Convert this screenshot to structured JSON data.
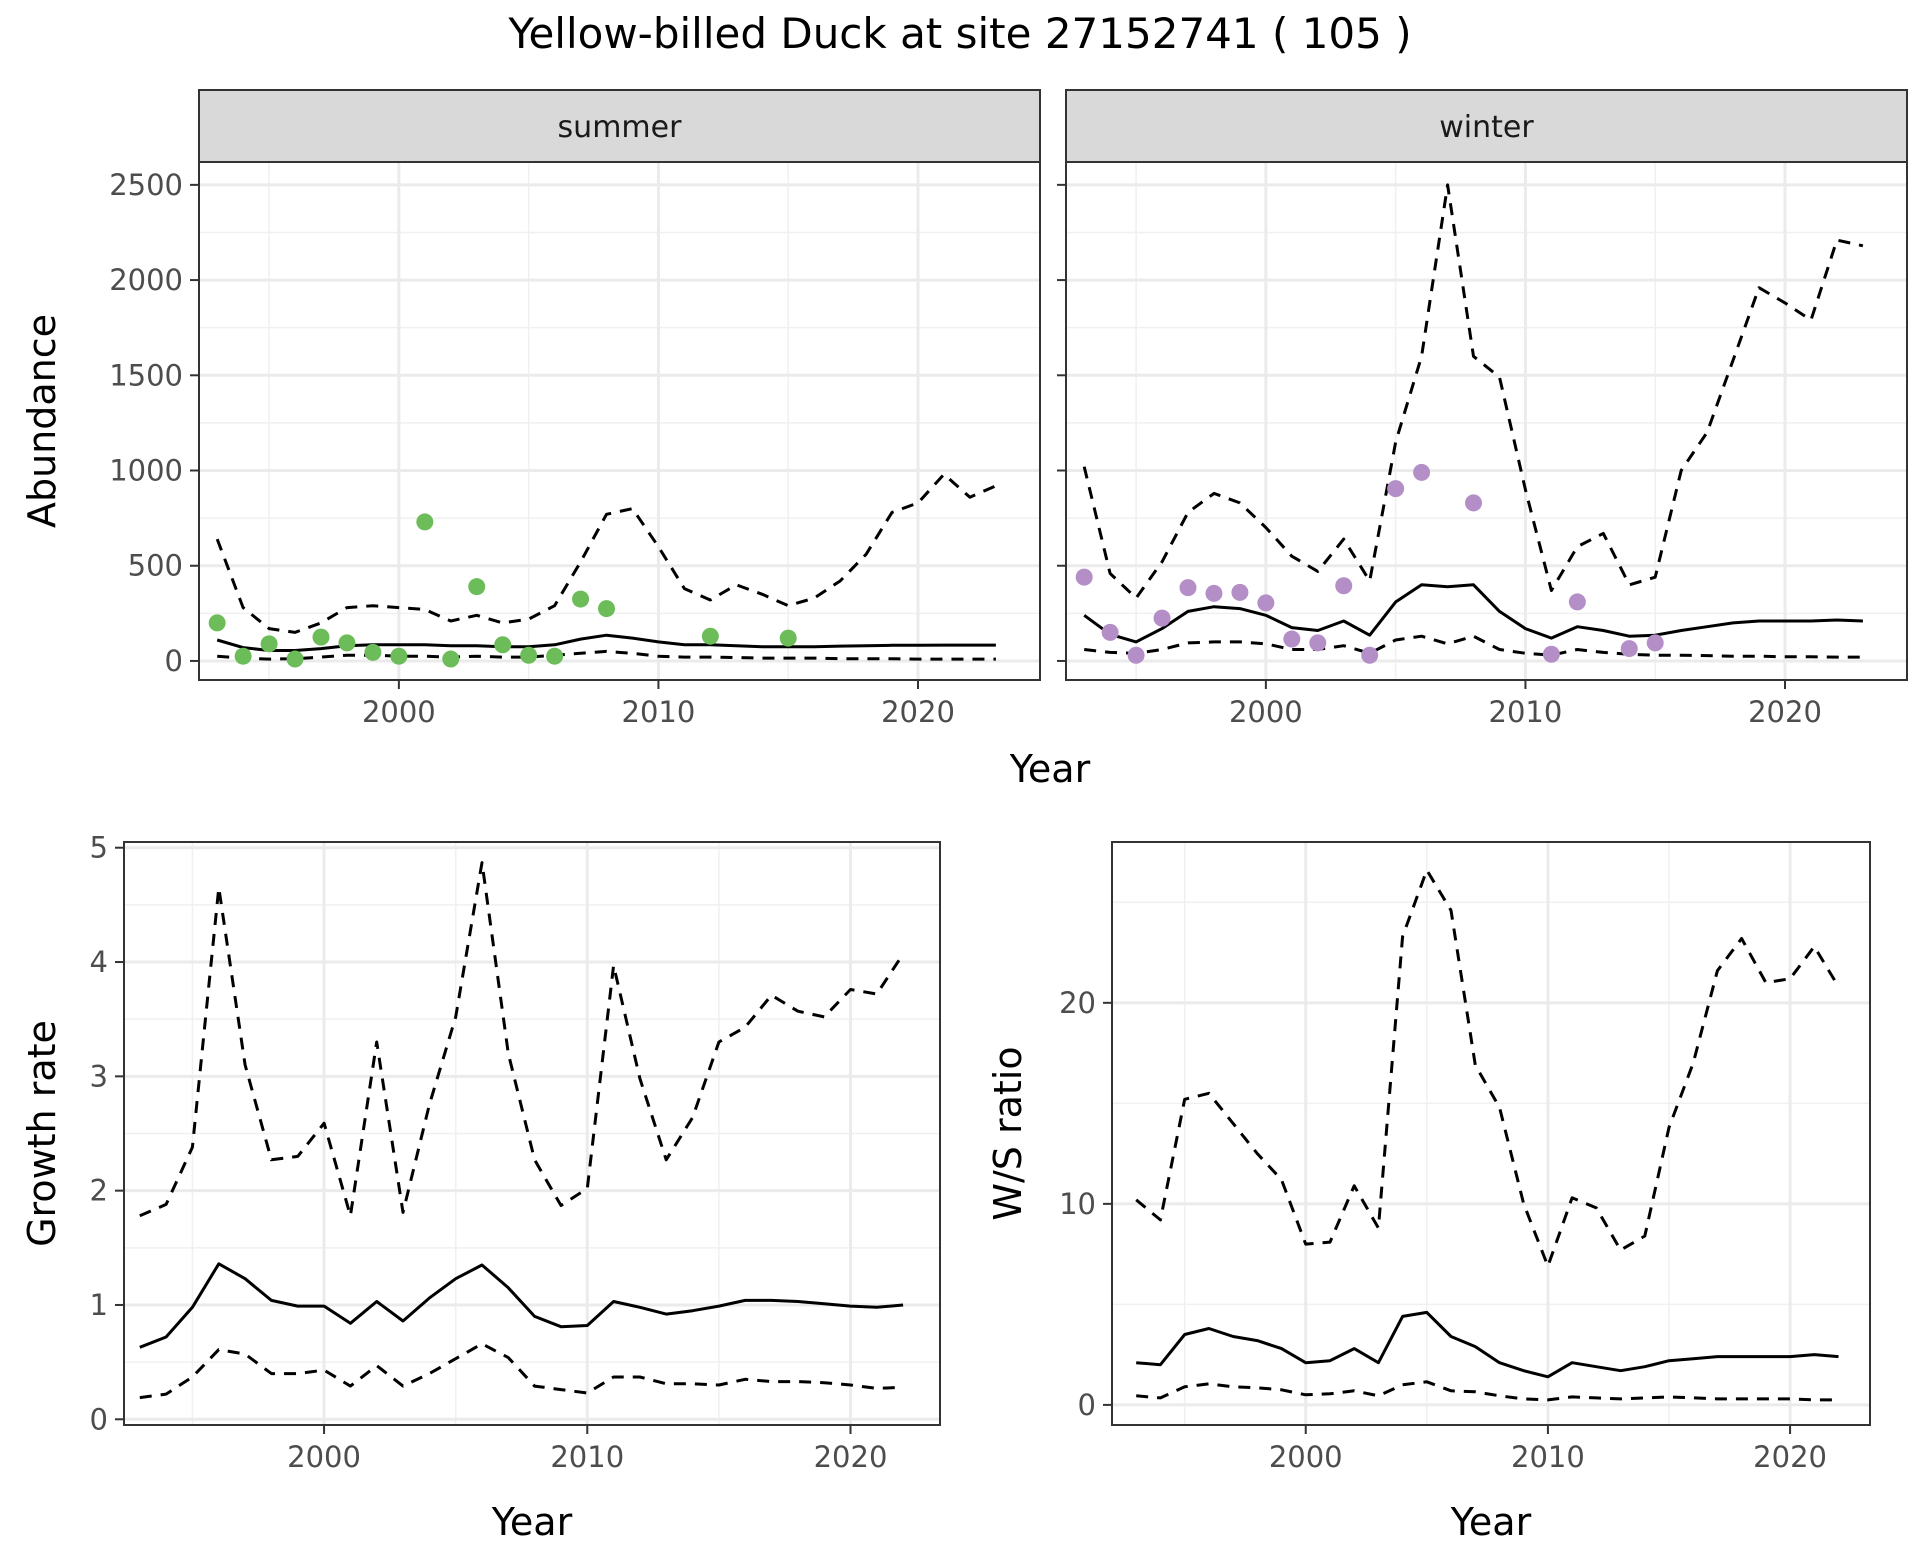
{
  "figure": {
    "title": "Yellow-billed Duck at site 27152741 ( 105 )",
    "top_xlabel": "Year"
  },
  "colors": {
    "summer_points": "#6cbd5a",
    "winter_points": "#b48ec7",
    "strip_fill": "#d9d9d9",
    "line": "#000000"
  },
  "chart_data": [
    {
      "id": "summer",
      "type": "line",
      "panel_label": "summer",
      "xlabel": "",
      "ylabel": "Abundance",
      "xlim": [
        1992.3,
        2024.7
      ],
      "ylim": [
        -100,
        2620
      ],
      "xticks": [
        2000,
        2010,
        2020
      ],
      "yticks": [
        0,
        500,
        1000,
        1500,
        2000,
        2500
      ],
      "show_y_tick_labels": true,
      "grid": true,
      "series": [
        {
          "role": "median",
          "style": "solid",
          "x": [
            1993,
            1994,
            1995,
            1996,
            1997,
            1998,
            1999,
            2000,
            2001,
            2002,
            2003,
            2004,
            2005,
            2006,
            2007,
            2008,
            2009,
            2010,
            2011,
            2012,
            2013,
            2014,
            2015,
            2016,
            2017,
            2018,
            2019,
            2020,
            2021,
            2022,
            2023
          ],
          "y": [
            110,
            70,
            55,
            55,
            65,
            80,
            85,
            85,
            85,
            80,
            80,
            75,
            75,
            85,
            115,
            135,
            120,
            100,
            85,
            85,
            80,
            75,
            75,
            75,
            78,
            80,
            82,
            82,
            83,
            83,
            83
          ]
        },
        {
          "role": "upper",
          "style": "dashed",
          "x": [
            1993,
            1994,
            1995,
            1996,
            1997,
            1998,
            1999,
            2000,
            2001,
            2002,
            2003,
            2004,
            2005,
            2006,
            2007,
            2008,
            2009,
            2010,
            2011,
            2012,
            2013,
            2014,
            2015,
            2016,
            2017,
            2018,
            2019,
            2020,
            2021,
            2022,
            2023
          ],
          "y": [
            640,
            280,
            170,
            150,
            200,
            280,
            290,
            280,
            270,
            210,
            240,
            200,
            220,
            290,
            520,
            770,
            800,
            600,
            380,
            320,
            400,
            350,
            290,
            330,
            420,
            560,
            780,
            830,
            980,
            860,
            920
          ]
        },
        {
          "role": "lower",
          "style": "dashed",
          "x": [
            1993,
            1994,
            1995,
            1996,
            1997,
            1998,
            1999,
            2000,
            2001,
            2002,
            2003,
            2004,
            2005,
            2006,
            2007,
            2008,
            2009,
            2010,
            2011,
            2012,
            2013,
            2014,
            2015,
            2016,
            2017,
            2018,
            2019,
            2020,
            2021,
            2022,
            2023
          ],
          "y": [
            25,
            15,
            10,
            12,
            20,
            30,
            30,
            25,
            25,
            20,
            25,
            20,
            20,
            30,
            40,
            50,
            40,
            25,
            20,
            20,
            18,
            15,
            15,
            15,
            12,
            12,
            12,
            10,
            10,
            10,
            10
          ]
        }
      ],
      "points": {
        "x": [
          1993,
          1994,
          1995,
          1996,
          1997,
          1998,
          1999,
          2000,
          2001,
          2002,
          2003,
          2004,
          2005,
          2006,
          2007,
          2008,
          2012,
          2015
        ],
        "y": [
          200,
          25,
          90,
          10,
          125,
          95,
          45,
          25,
          730,
          10,
          390,
          85,
          30,
          25,
          325,
          275,
          130,
          120
        ]
      }
    },
    {
      "id": "winter",
      "type": "line",
      "panel_label": "winter",
      "xlabel": "",
      "ylabel": "",
      "xlim": [
        1992.3,
        2024.7
      ],
      "ylim": [
        -100,
        2620
      ],
      "xticks": [
        2000,
        2010,
        2020
      ],
      "yticks": [
        0,
        500,
        1000,
        1500,
        2000,
        2500
      ],
      "show_y_tick_labels": false,
      "grid": true,
      "series": [
        {
          "role": "median",
          "style": "solid",
          "x": [
            1993,
            1994,
            1995,
            1996,
            1997,
            1998,
            1999,
            2000,
            2001,
            2002,
            2003,
            2004,
            2005,
            2006,
            2007,
            2008,
            2009,
            2010,
            2011,
            2012,
            2013,
            2014,
            2015,
            2016,
            2017,
            2018,
            2019,
            2020,
            2021,
            2022,
            2023
          ],
          "y": [
            240,
            140,
            100,
            170,
            260,
            285,
            275,
            240,
            175,
            160,
            210,
            135,
            310,
            400,
            390,
            400,
            260,
            170,
            120,
            180,
            160,
            130,
            135,
            160,
            180,
            200,
            210,
            210,
            210,
            215,
            210
          ]
        },
        {
          "role": "upper",
          "style": "dashed",
          "x": [
            1993,
            1994,
            1995,
            1996,
            1997,
            1998,
            1999,
            2000,
            2001,
            2002,
            2003,
            2004,
            2005,
            2006,
            2007,
            2008,
            2009,
            2010,
            2011,
            2012,
            2013,
            2014,
            2015,
            2016,
            2017,
            2018,
            2019,
            2020,
            2021,
            2022,
            2023
          ],
          "y": [
            1020,
            460,
            330,
            520,
            780,
            880,
            830,
            700,
            550,
            470,
            640,
            420,
            1150,
            1600,
            2500,
            1600,
            1490,
            900,
            370,
            600,
            670,
            400,
            440,
            1000,
            1200,
            1580,
            1960,
            1880,
            1790,
            2210,
            2180
          ]
        },
        {
          "role": "lower",
          "style": "dashed",
          "x": [
            1993,
            1994,
            1995,
            1996,
            1997,
            1998,
            1999,
            2000,
            2001,
            2002,
            2003,
            2004,
            2005,
            2006,
            2007,
            2008,
            2009,
            2010,
            2011,
            2012,
            2013,
            2014,
            2015,
            2016,
            2017,
            2018,
            2019,
            2020,
            2021,
            2022,
            2023
          ],
          "y": [
            60,
            45,
            40,
            60,
            95,
            100,
            100,
            90,
            60,
            60,
            80,
            40,
            110,
            130,
            90,
            130,
            60,
            40,
            30,
            60,
            45,
            35,
            30,
            30,
            28,
            25,
            25,
            22,
            22,
            20,
            20
          ]
        }
      ],
      "points": {
        "x": [
          1993,
          1994,
          1995,
          1996,
          1997,
          1998,
          1999,
          2000,
          2001,
          2002,
          2003,
          2004,
          2005,
          2006,
          2008,
          2011,
          2012,
          2014,
          2015
        ],
        "y": [
          440,
          150,
          30,
          225,
          385,
          355,
          360,
          305,
          115,
          95,
          395,
          30,
          905,
          990,
          830,
          35,
          310,
          65,
          95
        ]
      }
    },
    {
      "id": "growth",
      "type": "line",
      "xlabel": "Year",
      "ylabel": "Growth rate",
      "xlim": [
        1992.4,
        2023.4
      ],
      "ylim": [
        -0.05,
        5.05
      ],
      "xticks": [
        2000,
        2010,
        2020
      ],
      "yticks": [
        0,
        1,
        2,
        3,
        4,
        5
      ],
      "show_y_tick_labels": true,
      "grid": true,
      "series": [
        {
          "role": "median",
          "style": "solid",
          "x": [
            1993,
            1994,
            1995,
            1996,
            1997,
            1998,
            1999,
            2000,
            2001,
            2002,
            2003,
            2004,
            2005,
            2006,
            2007,
            2008,
            2009,
            2010,
            2011,
            2012,
            2013,
            2014,
            2015,
            2016,
            2017,
            2018,
            2019,
            2020,
            2021,
            2022
          ],
          "y": [
            0.63,
            0.72,
            0.98,
            1.36,
            1.23,
            1.04,
            0.99,
            0.99,
            0.84,
            1.03,
            0.86,
            1.06,
            1.23,
            1.35,
            1.15,
            0.9,
            0.81,
            0.82,
            1.03,
            0.98,
            0.92,
            0.95,
            0.99,
            1.04,
            1.04,
            1.03,
            1.01,
            0.99,
            0.98,
            1.0
          ]
        },
        {
          "role": "upper",
          "style": "dashed",
          "x": [
            1993,
            1994,
            1995,
            1996,
            1997,
            1998,
            1999,
            2000,
            2001,
            2002,
            2003,
            2004,
            2005,
            2006,
            2007,
            2008,
            2009,
            2010,
            2011,
            2012,
            2013,
            2014,
            2015,
            2016,
            2017,
            2018,
            2019,
            2020,
            2021,
            2022
          ],
          "y": [
            1.78,
            1.88,
            2.38,
            4.65,
            3.1,
            2.27,
            2.3,
            2.59,
            1.78,
            3.3,
            1.81,
            2.75,
            3.52,
            4.87,
            3.2,
            2.27,
            1.87,
            2.02,
            3.97,
            2.98,
            2.27,
            2.64,
            3.3,
            3.43,
            3.71,
            3.57,
            3.52,
            3.76,
            3.72,
            4.07
          ]
        },
        {
          "role": "lower",
          "style": "dashed",
          "x": [
            1993,
            1994,
            1995,
            1996,
            1997,
            1998,
            1999,
            2000,
            2001,
            2002,
            2003,
            2004,
            2005,
            2006,
            2007,
            2008,
            2009,
            2010,
            2011,
            2012,
            2013,
            2014,
            2015,
            2016,
            2017,
            2018,
            2019,
            2020,
            2021,
            2022
          ],
          "y": [
            0.19,
            0.22,
            0.37,
            0.61,
            0.57,
            0.4,
            0.4,
            0.43,
            0.29,
            0.47,
            0.29,
            0.4,
            0.53,
            0.66,
            0.54,
            0.29,
            0.26,
            0.23,
            0.37,
            0.37,
            0.31,
            0.31,
            0.3,
            0.35,
            0.33,
            0.33,
            0.32,
            0.3,
            0.27,
            0.28
          ]
        }
      ]
    },
    {
      "id": "ws",
      "type": "line",
      "xlabel": "Year",
      "ylabel": "W/S ratio",
      "xlim": [
        1992.0,
        2023.3
      ],
      "ylim": [
        -1.0,
        28.0
      ],
      "xticks": [
        2000,
        2010,
        2020
      ],
      "yticks": [
        0,
        10,
        20
      ],
      "show_y_tick_labels": true,
      "grid": true,
      "series": [
        {
          "role": "median",
          "style": "solid",
          "x": [
            1993,
            1994,
            1995,
            1996,
            1997,
            1998,
            1999,
            2000,
            2001,
            2002,
            2003,
            2004,
            2005,
            2006,
            2007,
            2008,
            2009,
            2010,
            2011,
            2012,
            2013,
            2014,
            2015,
            2016,
            2017,
            2018,
            2019,
            2020,
            2021,
            2022
          ],
          "y": [
            2.1,
            2.0,
            3.5,
            3.8,
            3.4,
            3.2,
            2.8,
            2.1,
            2.2,
            2.8,
            2.1,
            4.4,
            4.6,
            3.4,
            2.9,
            2.1,
            1.7,
            1.4,
            2.1,
            1.9,
            1.7,
            1.9,
            2.2,
            2.3,
            2.4,
            2.4,
            2.4,
            2.4,
            2.5,
            2.4
          ]
        },
        {
          "role": "upper",
          "style": "dashed",
          "x": [
            1993,
            1994,
            1995,
            1996,
            1997,
            1998,
            1999,
            2000,
            2001,
            2002,
            2003,
            2004,
            2005,
            2006,
            2007,
            2008,
            2009,
            2010,
            2011,
            2012,
            2013,
            2014,
            2015,
            2016,
            2017,
            2018,
            2019,
            2020,
            2021,
            2022
          ],
          "y": [
            10.2,
            9.2,
            15.2,
            15.5,
            14.0,
            12.5,
            11.2,
            8.0,
            8.1,
            10.9,
            8.8,
            23.3,
            26.6,
            24.6,
            16.9,
            14.8,
            10.0,
            6.9,
            10.3,
            9.8,
            7.7,
            8.4,
            13.8,
            17.0,
            21.6,
            23.2,
            21.0,
            21.2,
            22.8,
            20.8
          ]
        },
        {
          "role": "lower",
          "style": "dashed",
          "x": [
            1993,
            1994,
            1995,
            1996,
            1997,
            1998,
            1999,
            2000,
            2001,
            2002,
            2003,
            2004,
            2005,
            2006,
            2007,
            2008,
            2009,
            2010,
            2011,
            2012,
            2013,
            2014,
            2015,
            2016,
            2017,
            2018,
            2019,
            2020,
            2021,
            2022
          ],
          "y": [
            0.45,
            0.35,
            0.9,
            1.05,
            0.9,
            0.85,
            0.75,
            0.5,
            0.55,
            0.7,
            0.45,
            1.0,
            1.15,
            0.7,
            0.65,
            0.45,
            0.3,
            0.25,
            0.4,
            0.35,
            0.3,
            0.35,
            0.4,
            0.35,
            0.3,
            0.3,
            0.3,
            0.3,
            0.25,
            0.25
          ]
        }
      ]
    }
  ]
}
